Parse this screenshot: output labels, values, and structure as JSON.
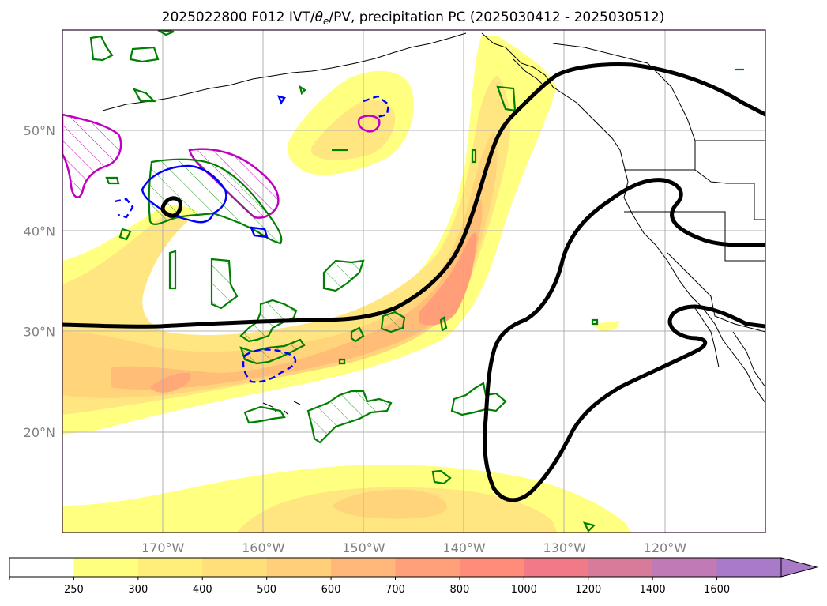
{
  "title": {
    "prefix": "2025022800 F012 IVT/",
    "theta_symbol": "θ",
    "theta_sub": "e",
    "suffix": "/PV, precipitation PC (2025030412 - 2025030512)"
  },
  "map": {
    "lon_range": [
      -180,
      -110
    ],
    "lat_range": [
      10,
      60
    ],
    "lon_ticks": [
      {
        "lon": -170,
        "label": "170°W"
      },
      {
        "lon": -160,
        "label": "160°W"
      },
      {
        "lon": -150,
        "label": "150°W"
      },
      {
        "lon": -140,
        "label": "140°W"
      },
      {
        "lon": -130,
        "label": "130°W"
      },
      {
        "lon": -120,
        "label": "120°W"
      }
    ],
    "lat_ticks": [
      {
        "lat": 20,
        "label": "20°N"
      },
      {
        "lat": 30,
        "label": "30°N"
      },
      {
        "lat": 40,
        "label": "40°N"
      },
      {
        "lat": 50,
        "label": "50°N"
      }
    ],
    "grid": true
  },
  "colorbar": {
    "extend": "max",
    "colors": [
      "#ffffff",
      "#ffff7f",
      "#ffee7a",
      "#ffdf7a",
      "#ffcf7a",
      "#ffb87a",
      "#ffa07a",
      "#ff8c7a",
      "#f07a85",
      "#d87a9a",
      "#c07ab5",
      "#a87ac8"
    ],
    "labels": [
      "250",
      "300",
      "400",
      "500",
      "600",
      "700",
      "800",
      "1000",
      "1200",
      "1400",
      "1600"
    ]
  },
  "colors": {
    "ivt_light": "#ffff80",
    "ivt_mid": "#ffe070",
    "ivt_dark": "#ffc070",
    "ivt_peak": "#ff9070",
    "theta_e_line": "#000000",
    "pv_positive": "#008000",
    "pv_negative": "#0000ff",
    "pv_hatch": "#c000c0"
  }
}
